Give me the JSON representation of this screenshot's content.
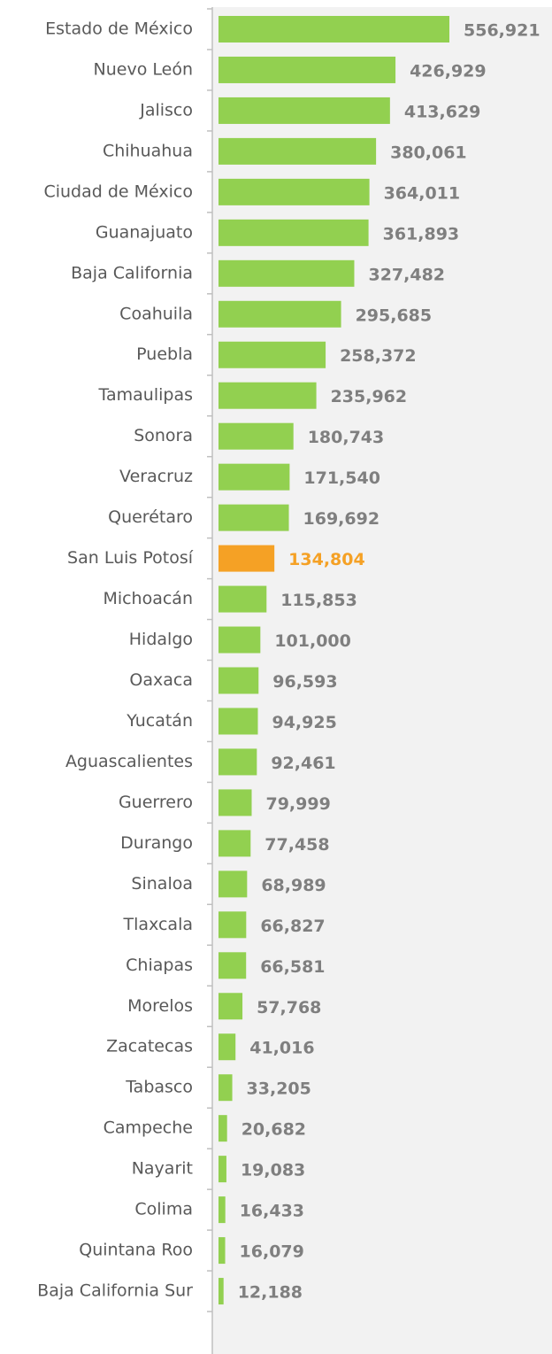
{
  "chart_data": {
    "type": "hbar",
    "categories": [
      "Estado de México",
      "Nuevo León",
      "Jalisco",
      "Chihuahua",
      "Ciudad de México",
      "Guanajuato",
      "Baja California",
      "Coahuila",
      "Puebla",
      "Tamaulipas",
      "Sonora",
      "Veracruz",
      "Querétaro",
      "San Luis Potosí",
      "Michoacán",
      "Hidalgo",
      "Oaxaca",
      "Yucatán",
      "Aguascalientes",
      "Guerrero",
      "Durango",
      "Sinaloa",
      "Tlaxcala",
      "Chiapas",
      "Morelos",
      "Zacatecas",
      "Tabasco",
      "Campeche",
      "Nayarit",
      "Colima",
      "Quintana Roo",
      "Baja California Sur"
    ],
    "values": [
      556921,
      426929,
      413629,
      380061,
      364011,
      361893,
      327482,
      295685,
      258372,
      235962,
      180743,
      171540,
      169692,
      134804,
      115853,
      101000,
      96593,
      94925,
      92461,
      79999,
      77458,
      68989,
      66827,
      66581,
      57768,
      41016,
      33205,
      20682,
      19083,
      16433,
      16079,
      12188
    ],
    "value_labels": [
      "556,921",
      "426,929",
      "413,629",
      "380,061",
      "364,011",
      "361,893",
      "327,482",
      "295,685",
      "258,372",
      "235,962",
      "180,743",
      "171,540",
      "169,692",
      "134,804",
      "115,853",
      "101,000",
      "96,593",
      "94,925",
      "92,461",
      "79,999",
      "77,458",
      "68,989",
      "66,827",
      "66,581",
      "57,768",
      "41,016",
      "33,205",
      "20,682",
      "19,083",
      "16,433",
      "16,079",
      "12,188"
    ],
    "color": "#92d050",
    "highlight": {
      "index": 13,
      "color": "#f5a125"
    },
    "label_color": "#7f7f7f"
  }
}
